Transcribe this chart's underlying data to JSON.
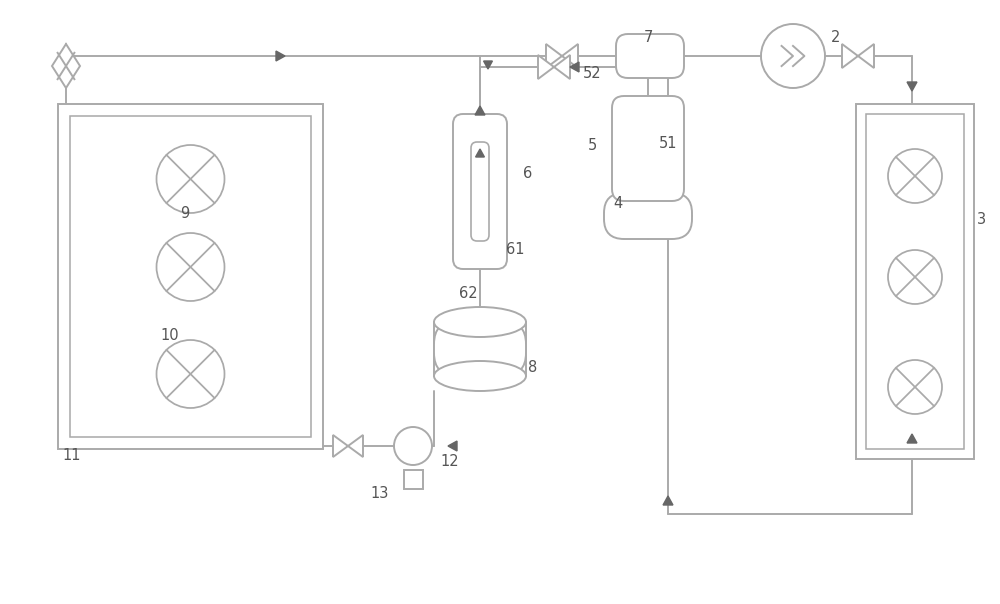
{
  "bg_color": "#ffffff",
  "line_color": "#aaaaaa",
  "lw": 1.4,
  "figsize": [
    10.0,
    6.04
  ],
  "dpi": 100
}
